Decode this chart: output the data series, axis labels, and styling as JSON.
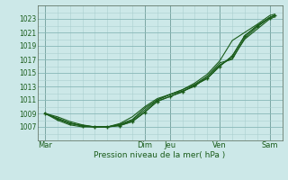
{
  "background_color": "#cce8e8",
  "grid_color_minor": "#aacfcf",
  "grid_color_major": "#88b8b8",
  "line_color": "#1a5c1a",
  "title": "Pression niveau de la mer( hPa )",
  "ylim": [
    1005.0,
    1025.0
  ],
  "yticks": [
    1007,
    1009,
    1011,
    1013,
    1015,
    1017,
    1019,
    1021,
    1023
  ],
  "xlabels": [
    "Mar",
    "Dim",
    "Jeu",
    "Ven",
    "Sam"
  ],
  "xtick_positions": [
    0,
    4,
    5,
    7,
    9
  ],
  "x_major_vlines": [
    0,
    4,
    5,
    7,
    9
  ],
  "series": [
    {
      "x": [
        0,
        0.5,
        1.0,
        1.5,
        2.0,
        2.5,
        3.0,
        3.5,
        4.0,
        4.5,
        5.0,
        5.5,
        6.0,
        6.5,
        7.0,
        7.5,
        8.0,
        8.5,
        9.0,
        9.2
      ],
      "y": [
        1009,
        1008.2,
        1007.5,
        1007.2,
        1007.0,
        1007.0,
        1007.2,
        1007.8,
        1009.2,
        1010.8,
        1011.5,
        1012.2,
        1013.2,
        1014.2,
        1016.0,
        1017.5,
        1020.5,
        1022.0,
        1023.2,
        1023.5
      ]
    },
    {
      "x": [
        0,
        0.5,
        1.0,
        1.5,
        2.0,
        2.5,
        3.0,
        3.5,
        4.0,
        4.5,
        5.0,
        5.5,
        6.0,
        6.5,
        7.0,
        7.5,
        8.0,
        8.5,
        9.0,
        9.2
      ],
      "y": [
        1009,
        1008.5,
        1007.8,
        1007.3,
        1007.0,
        1007.0,
        1007.3,
        1008.0,
        1009.5,
        1011.0,
        1011.8,
        1012.5,
        1013.3,
        1014.5,
        1016.2,
        1017.2,
        1020.0,
        1021.5,
        1023.0,
        1023.3
      ]
    },
    {
      "x": [
        0,
        0.5,
        1.0,
        1.5,
        2.0,
        2.5,
        3.0,
        3.5,
        4.0,
        4.5,
        5.0,
        5.5,
        6.0,
        6.5,
        7.0,
        7.5,
        8.0,
        8.5,
        9.0,
        9.2
      ],
      "y": [
        1009,
        1008.0,
        1007.3,
        1007.0,
        1007.0,
        1007.0,
        1007.5,
        1008.5,
        1010.0,
        1011.2,
        1011.8,
        1012.5,
        1013.5,
        1014.8,
        1016.8,
        1019.8,
        1021.0,
        1022.2,
        1023.5,
        1023.7
      ]
    },
    {
      "x": [
        0,
        0.5,
        1.0,
        1.5,
        2.0,
        2.5,
        3.0,
        3.5,
        4.0,
        4.5,
        5.0,
        5.5,
        6.0,
        6.5,
        7.0,
        7.5,
        8.0,
        8.5,
        9.0,
        9.2
      ],
      "y": [
        1009,
        1008.3,
        1007.6,
        1007.1,
        1007.0,
        1007.0,
        1007.4,
        1008.1,
        1009.8,
        1011.0,
        1011.8,
        1012.3,
        1013.0,
        1014.5,
        1016.5,
        1017.0,
        1020.2,
        1021.8,
        1023.2,
        1023.5
      ]
    }
  ],
  "marker_series": [
    {
      "x": [
        0,
        0.5,
        1.0,
        1.5,
        2.0,
        2.5,
        3.0,
        3.5,
        4.0,
        4.5,
        5.0,
        5.5,
        6.0,
        6.5,
        7.0,
        7.5,
        8.0,
        8.5,
        9.0,
        9.2
      ],
      "y": [
        1009,
        1008.2,
        1007.5,
        1007.2,
        1007.0,
        1007.0,
        1007.2,
        1007.8,
        1009.2,
        1010.8,
        1011.5,
        1012.2,
        1013.2,
        1014.2,
        1016.0,
        1017.5,
        1020.5,
        1022.0,
        1023.2,
        1023.5
      ]
    }
  ]
}
